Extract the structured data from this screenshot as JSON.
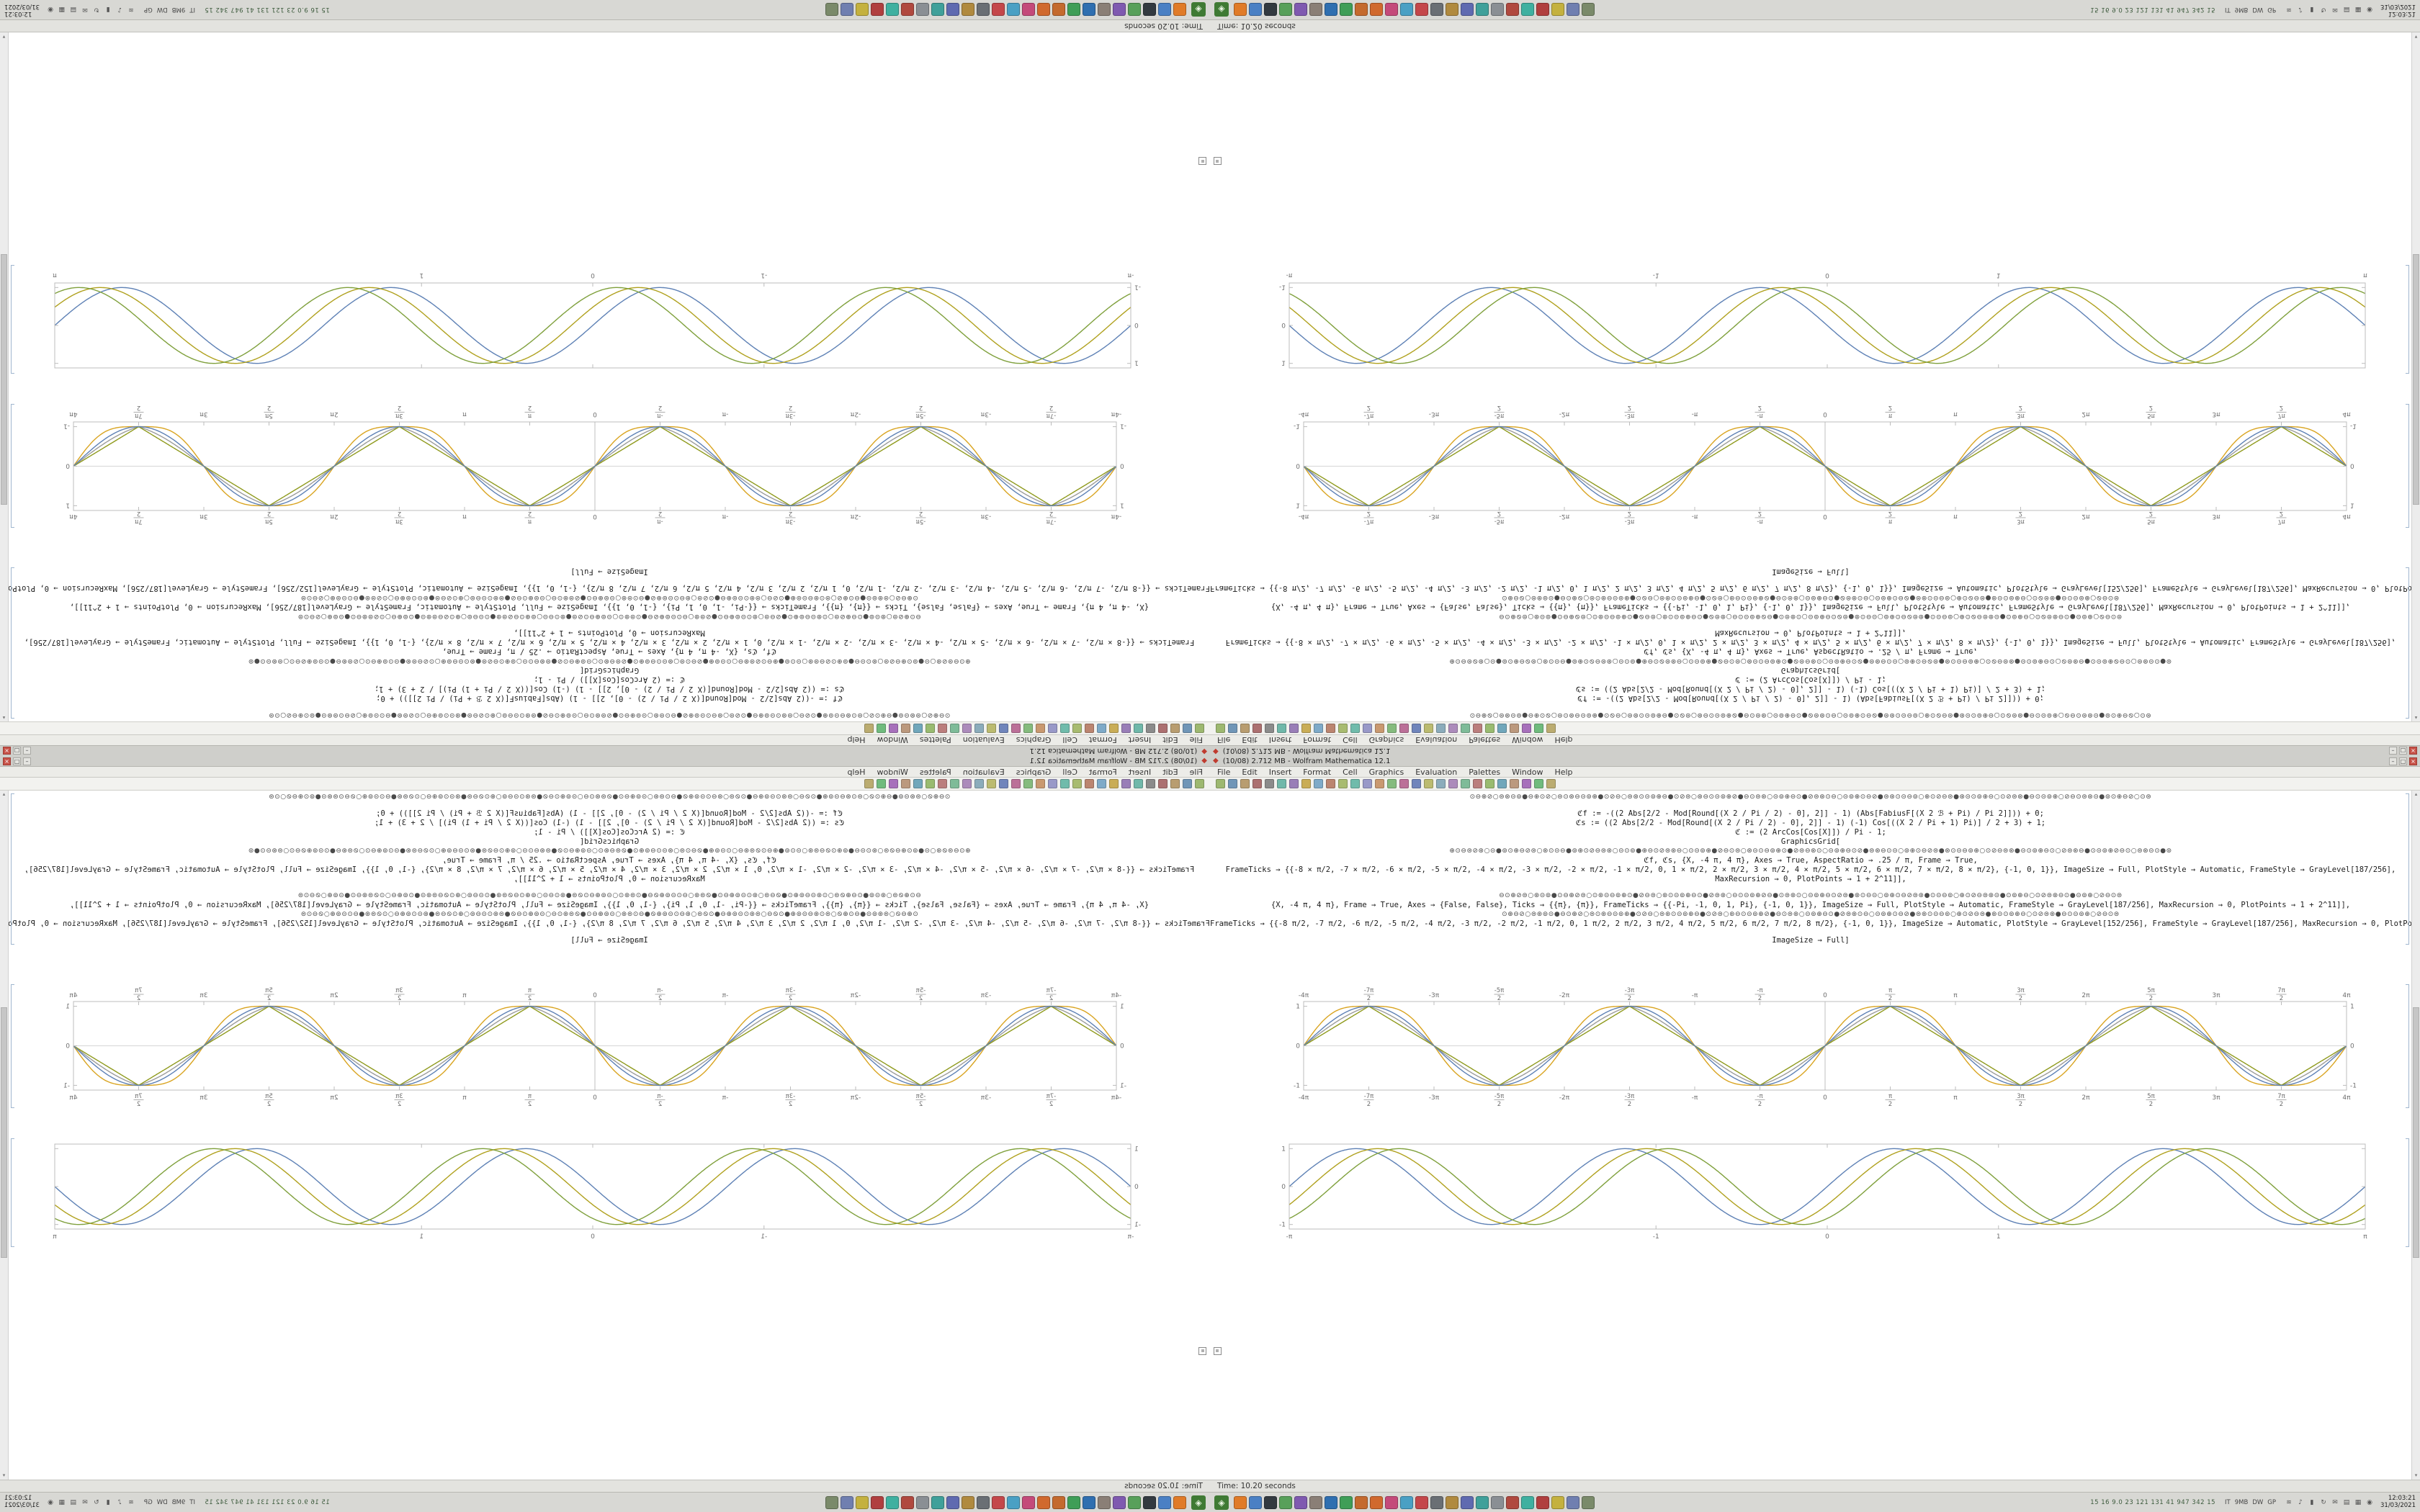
{
  "window": {
    "title": "(10/08)  2.712 MB  -  Wolfram Mathematica 12.1",
    "buttons": {
      "minimize": "–",
      "maximize": "□",
      "close": "×"
    },
    "menu": [
      "File",
      "Edit",
      "Insert",
      "Format",
      "Cell",
      "Graphics",
      "Evaluation",
      "Palettes",
      "Window",
      "Help"
    ],
    "toolbar_icons": [
      {
        "name": "new-notebook",
        "color": "#8fae5a"
      },
      {
        "name": "open",
        "color": "#5a87ae"
      },
      {
        "name": "save",
        "color": "#ae8f5a"
      },
      {
        "name": "print",
        "color": "#a05a5a"
      },
      {
        "name": "cut",
        "color": "#7a7a7a"
      },
      {
        "name": "copy",
        "color": "#5aae9e"
      },
      {
        "name": "paste",
        "color": "#8a6aae"
      },
      {
        "name": "undo",
        "color": "#c2a23c"
      },
      {
        "name": "redo",
        "color": "#6a9ec2"
      },
      {
        "name": "find",
        "color": "#b2725a"
      },
      {
        "name": "insert-cell",
        "color": "#9cb25a"
      },
      {
        "name": "evaluate",
        "color": "#5ab2a0"
      },
      {
        "name": "abort-evaluation",
        "color": "#8a8ac2"
      },
      {
        "name": "text-style",
        "color": "#c28a5a"
      },
      {
        "name": "bold",
        "color": "#72b26a"
      },
      {
        "name": "italic",
        "color": "#b25a8a"
      },
      {
        "name": "align",
        "color": "#5a72b2"
      },
      {
        "name": "math-input",
        "color": "#b2b25a"
      },
      {
        "name": "palette",
        "color": "#7aa0b2"
      },
      {
        "name": "slideshow",
        "color": "#a07ab2"
      },
      {
        "name": "zoom-in",
        "color": "#6ab28a"
      },
      {
        "name": "zoom-out",
        "color": "#b26a6a"
      },
      {
        "name": "help-toolbar",
        "color": "#8ab25a"
      },
      {
        "name": "preferences",
        "color": "#5a9ab2"
      },
      {
        "name": "format-cell",
        "color": "#b28a6a"
      },
      {
        "name": "graphics-tools",
        "color": "#9a5ab2"
      },
      {
        "name": "table-insert",
        "color": "#5ab26a"
      },
      {
        "name": "hyperlink",
        "color": "#b2a05a"
      }
    ]
  },
  "notebook": {
    "lines": [
      {
        "kind": "special",
        "text": "⊙⊖⊕⊘○⊜⊛⊝⊚●⊖⊕⊙⊘○⊜⊙⊛⊖⊝⊚⊕●⊙⊘⊖○⊜⊛⊙⊝⊚⊕⊖●⊙⊘⊜○⊛⊖⊙⊝⊚⊕⊘●⊖⊙⊜⊛○⊝⊚⊕⊖⊙●⊘⊜⊛⊙⊖○⊝⊚⊕⊙⊖⊘●⊜⊛⊙⊝⊖⊚○⊕⊙⊘⊖⊜●⊛⊝⊙⊚⊕⊖○⊙⊘⊜⊛●⊖⊙⊝⊚⊕○⊘⊖⊙⊜⊛⊝●⊚⊙⊕⊖⊘○⊙⊜"
      },
      {
        "kind": "gap",
        "text": ""
      },
      {
        "kind": "code",
        "text": "ℭf := -((2 Abs[2/2 - Mod[Round[(X 2 / Pi / 2) - 0], 2]] - 1) (Abs[FabiusF[(X 2 ℬ + Pi) / Pi 2]])) + 0;"
      },
      {
        "kind": "code",
        "text": "ℭs := ((2 Abs[2/2 - Mod[Round[(X 2 / Pi / 2) - 0], 2]] - 1) (-1) Cos[((X 2 / Pi + 1) Pi)] / 2 + 3) + 1;"
      },
      {
        "kind": "code",
        "text": "ℭ := (2 ArcCos[Cos[X]]) / Pi - 1;"
      },
      {
        "kind": "code",
        "text": "GraphicsGrid["
      },
      {
        "kind": "special",
        "text": "⊕⊙⊖⊜⊘⊛○⊝●⊚⊙⊕⊖⊘⊜○⊛⊙⊝⊖●⊚⊕⊙⊘⊖⊜⊛○⊝⊙⊚●⊕⊖⊙⊘⊜⊛⊖○⊙⊝⊚⊕●⊘⊖⊙⊜○⊛⊝⊙⊖⊚⊕⊙●⊘⊜⊖⊛⊙○⊝⊚⊕⊖⊙⊘●⊜⊛⊖⊙⊝○⊚⊕⊙⊖⊘⊜●⊛⊙⊝⊖⊚⊕○⊙⊘⊖⊜⊛●⊝⊙⊚⊕⊖⊙○⊘⊜⊛⊖●⊙⊝⊚⊕⊘⊖⊙○⊜⊛⊝⊙●⊚"
      },
      {
        "kind": "code",
        "text": "ℭf, ℭs, {X, -4 π, 4 π}, Axes → True, AspectRatio → .25 / π, Frame → True,"
      },
      {
        "kind": "code",
        "text": "FrameTicks → {{-8 × π/2, -7 × π/2, -6 × π/2, -5 × π/2, -4 × π/2, -3 × π/2, -2 × π/2, -1 × π/2, 0, 1 × π/2, 2 × π/2, 3 × π/2, 4 × π/2, 5 × π/2, 6 × π/2, 7 × π/2, 8 × π/2}, {-1, 0, 1}}, ImageSize → Full, PlotStyle → Automatic, FrameStyle → GrayLevel[187/256],"
      },
      {
        "kind": "code",
        "text": "MaxRecursion → 0, PlotPoints → 1 + 2^11]],"
      },
      {
        "kind": "gap",
        "text": ""
      },
      {
        "kind": "special",
        "text": "⊖⊙⊕⊘⊜○⊛⊝⊚●⊙⊖⊕⊘⊜○⊙⊛⊝⊖⊚⊕⊙●⊘⊖⊜○⊛⊙⊝⊚⊕⊖⊙●⊘⊜⊛○⊖⊙⊝⊚⊕⊘⊖●⊙⊜⊛⊙○⊝⊚⊕⊖⊙⊘⊜●⊛⊙⊖⊝○⊚⊕⊙⊖⊘⊜⊛●⊙⊝⊖⊚○⊕⊙⊘⊖⊜⊛⊝●⊙⊚⊕⊖○⊙⊘⊜⊛⊖⊙●⊝⊚⊕○⊘⊖⊙⊜"
      },
      {
        "kind": "code",
        "text": "{X, -4 π, 4 π}, Frame → True, Axes → {False, False}, Ticks → {{π}, {π}}, FrameTicks → {{-Pi, -1, 0, 1, Pi}, {-1, 0, 1}}, ImageSize → Full, PlotStyle → Automatic, FrameStyle → GrayLevel[187/256], MaxRecursion → 0, PlotPoints → 1 + 2^11]],"
      },
      {
        "kind": "special",
        "text": "⊙⊕⊖⊘○⊜⊛⊚⊝●⊖⊙⊕⊘○⊜⊙⊛⊖⊝⊚⊕●⊙⊘⊖○⊜⊛⊙⊝⊚⊕⊖●⊙⊘⊜○⊛⊖⊙⊝⊚⊕⊘●⊖⊙⊜⊛○⊝⊚⊕⊖⊙●⊘⊜⊛⊙⊖○⊝⊚⊕⊙⊖⊘●⊜⊛⊙⊝⊖⊚○⊕⊙⊘⊖⊜●⊛⊝⊙⊚⊕⊖○⊙⊘⊜⊛●⊖⊙⊝⊚⊕○⊘⊖⊙⊜"
      },
      {
        "kind": "code",
        "text": "FrameTicks → {{-8 π/2, -7 π/2, -6 π/2, -5 π/2, -4 π/2, -3 π/2, -2 π/2, -1 π/2, 0, 1 π/2, 2 π/2, 3 π/2, 4 π/2, 5 π/2, 6 π/2, 7 π/2, 8 π/2}, {-1, 0, 1}}, ImageSize → Automatic, PlotStyle → GrayLevel[152/256], FrameStyle → GrayLevel[187/256], MaxRecursion → 0, PlotPoints → 1 + 2^11]] = [s]"
      },
      {
        "kind": "gap",
        "text": ""
      },
      {
        "kind": "code",
        "text": "ImageSize → Full]"
      }
    ]
  },
  "status_bar": {
    "text": "Time: 10.20 seconds"
  },
  "taskbar": {
    "launcher_glyph": "◈",
    "app_icons": [
      {
        "name": "web-browser",
        "color": "#e07b28"
      },
      {
        "name": "file-manager",
        "color": "#4a80c4"
      },
      {
        "name": "terminal",
        "color": "#333a40"
      },
      {
        "name": "text-editor",
        "color": "#58a05a"
      },
      {
        "name": "image-viewer",
        "color": "#7f5ab0"
      },
      {
        "name": "image-editor",
        "color": "#8a7f76"
      },
      {
        "name": "office-writer",
        "color": "#2f6fb0"
      },
      {
        "name": "office-calc",
        "color": "#3f9e57"
      },
      {
        "name": "office-impress",
        "color": "#c46a2e"
      },
      {
        "name": "media-player",
        "color": "#d0692e"
      },
      {
        "name": "music-player",
        "color": "#c44a7a"
      },
      {
        "name": "mail-client",
        "color": "#4aa0c4"
      },
      {
        "name": "calendar",
        "color": "#c4474a"
      },
      {
        "name": "calculator",
        "color": "#6a6f74"
      },
      {
        "name": "archive-manager",
        "color": "#b08a3f"
      },
      {
        "name": "screenshot-tool",
        "color": "#5f6ab0"
      },
      {
        "name": "system-monitor",
        "color": "#3fa09a"
      },
      {
        "name": "settings",
        "color": "#8a8f94"
      },
      {
        "name": "software-center",
        "color": "#b0493f"
      },
      {
        "name": "chat",
        "color": "#3fb0a0"
      },
      {
        "name": "pdf-viewer",
        "color": "#b03f3f"
      },
      {
        "name": "notes",
        "color": "#c4b13f"
      },
      {
        "name": "disk-utility",
        "color": "#707fb0"
      },
      {
        "name": "trash",
        "color": "#7a8a6a"
      }
    ],
    "stats_text": "15 16 9.0 23 121 131 41 947 342 15",
    "monitor_labels": [
      "IT",
      "9MB",
      "DW",
      "GP"
    ],
    "tray_icons": [
      {
        "name": "network-icon",
        "glyph": "≋"
      },
      {
        "name": "volume-icon",
        "glyph": "♪"
      },
      {
        "name": "battery-icon",
        "glyph": "▮"
      },
      {
        "name": "updates-icon",
        "glyph": "↻"
      },
      {
        "name": "mail-tray-icon",
        "glyph": "✉"
      },
      {
        "name": "clipboard-icon",
        "glyph": "▤"
      },
      {
        "name": "display-icon",
        "glyph": "▦"
      },
      {
        "name": "power-icon",
        "glyph": "◉"
      }
    ],
    "clock_time": "12:03:21",
    "clock_date": "31/03/2021"
  },
  "chart_data": [
    {
      "type": "line",
      "title": "",
      "x_range": [
        -12.5664,
        12.5664
      ],
      "y_range": [
        -1.12,
        1.12
      ],
      "x_ticks": [
        {
          "v": -12.5664,
          "label": "-4π"
        },
        {
          "v": -10.9956,
          "label": "-7π/2"
        },
        {
          "v": -9.4248,
          "label": "-3π"
        },
        {
          "v": -7.854,
          "label": "-5π/2"
        },
        {
          "v": -6.2832,
          "label": "-2π"
        },
        {
          "v": -4.7124,
          "label": "-3π/2"
        },
        {
          "v": -3.1416,
          "label": "-π"
        },
        {
          "v": -1.5708,
          "label": "-π/2"
        },
        {
          "v": 0,
          "label": "0"
        },
        {
          "v": 1.5708,
          "label": "π/2"
        },
        {
          "v": 3.1416,
          "label": "π"
        },
        {
          "v": 4.7124,
          "label": "3π/2"
        },
        {
          "v": 6.2832,
          "label": "2π"
        },
        {
          "v": 7.854,
          "label": "5π/2"
        },
        {
          "v": 9.4248,
          "label": "3π"
        },
        {
          "v": 10.9956,
          "label": "7π/2"
        },
        {
          "v": 12.5664,
          "label": "4π"
        }
      ],
      "y_ticks": [
        {
          "v": -1,
          "label": "-1"
        },
        {
          "v": 0,
          "label": "0"
        },
        {
          "v": 1,
          "label": "1"
        }
      ],
      "x_label_sides": "both",
      "y_label_sides": "both",
      "axis_lines": {
        "vertical_x0": true,
        "horizontal_y0": true
      },
      "frame_color": "#bcbcbc",
      "series": [
        {
          "name": "fabius-smooth-wave",
          "fn": "mix",
          "freq": 1,
          "phase": 0,
          "color": "#9b9b9b"
        },
        {
          "name": "rounded-square-wave",
          "fn": "bulge",
          "freq": 1,
          "phase": 0,
          "color": "#d9a420"
        },
        {
          "name": "triangle-wave",
          "fn": "tri",
          "freq": 1,
          "phase": 0,
          "color": "#8f9a1d"
        },
        {
          "name": "sine-wave",
          "fn": "sin",
          "freq": 1,
          "phase": 0,
          "color": "#5e81b5"
        }
      ]
    },
    {
      "type": "line",
      "title": "",
      "x_range": [
        -3.1416,
        3.1416
      ],
      "y_range": [
        -1.12,
        1.12
      ],
      "x_ticks": [
        {
          "v": -3.1416,
          "label": "-π"
        },
        {
          "v": -1,
          "label": "-1"
        },
        {
          "v": 0,
          "label": "0"
        },
        {
          "v": 1,
          "label": "1"
        },
        {
          "v": 3.1416,
          "label": "π"
        }
      ],
      "y_ticks": [
        {
          "v": -1,
          "label": "-1"
        },
        {
          "v": 0,
          "label": "0"
        },
        {
          "v": 1,
          "label": "1"
        }
      ],
      "x_label_sides": "bottom",
      "y_label_sides": "left",
      "axis_lines": {
        "vertical_x0": false,
        "horizontal_y0": false
      },
      "frame_color": "#bcbcbc",
      "series": [
        {
          "name": "sine-phase-0",
          "fn": "sin",
          "freq": 4,
          "phase": 0,
          "color": "#5e81b5"
        },
        {
          "name": "sine-phase-1",
          "fn": "sin",
          "freq": 4,
          "phase": 0.5,
          "color": "#b0a11e"
        },
        {
          "name": "sine-phase-2",
          "fn": "sin",
          "freq": 4,
          "phase": 1.0,
          "color": "#7fa03c"
        }
      ]
    }
  ]
}
